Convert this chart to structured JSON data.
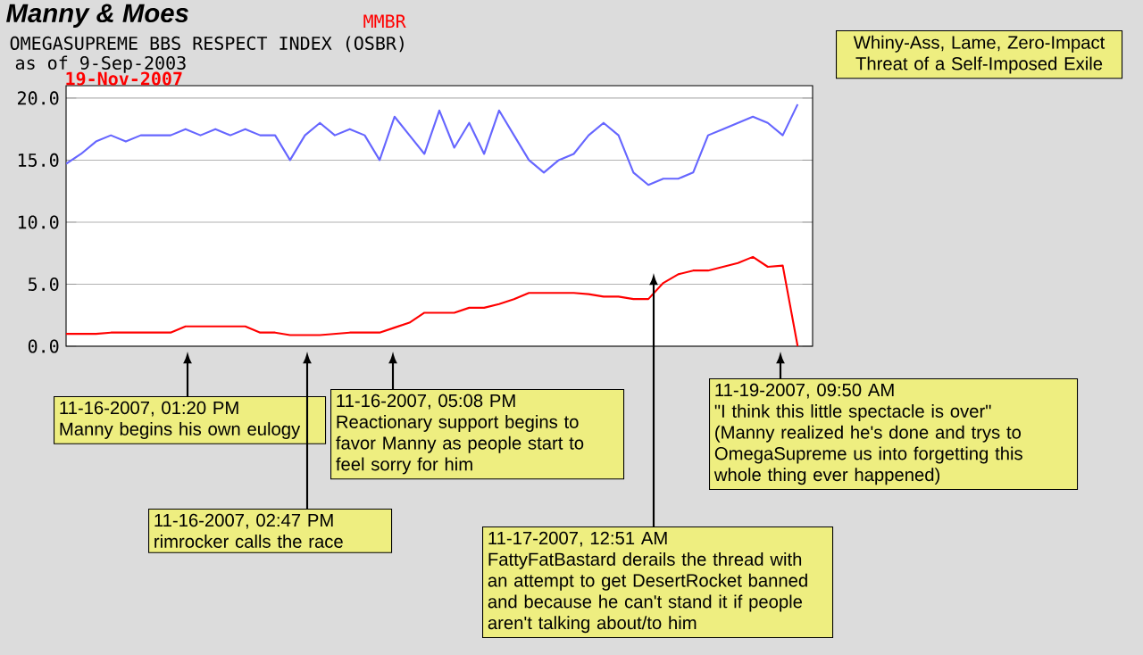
{
  "chart_data": {
    "type": "line",
    "title": "Manny & Moes",
    "subtitle": "OMEGASUPREME BBS RESPECT INDEX (OSBR)",
    "annotations": [
      "MMBR",
      "as of 9-Sep-2003",
      "19-Nov-2007",
      "Whiny-Ass, Lame, Zero-Impact Threat of a Self-Imposed Exile",
      "11-16-2007, 01:20 PM",
      "Manny begins his own eulogy",
      "11-16-2007, 02:47 PM",
      "rimrocker calls the race",
      "11-16-2007, 05:08 PM",
      "Reactionary support begins to favor Manny as people start to feel sorry for him",
      "11-17-2007, 12:51 AM",
      "FattyFatBastard derails the thread with an attempt to get DesertRocket banned and because he can't stand it if people aren't talking about/to him",
      "11-19-2007, 09:50 AM",
      "\"I think this little spectacle is over\" (Manny realized he's done and trys to OmegaSupreme us into forgetting this whole thing ever happened)"
    ],
    "categories": [
      null,
      null,
      null,
      null,
      null,
      null,
      null,
      null,
      null,
      null,
      null,
      null,
      null,
      null,
      null,
      null,
      null,
      null,
      null,
      null,
      null,
      null,
      null,
      null,
      null,
      null,
      null,
      null,
      null,
      null,
      null,
      null,
      null,
      null,
      null,
      null,
      null,
      null,
      null,
      null,
      null,
      null,
      null,
      null,
      null,
      null,
      null,
      null,
      null,
      null
    ],
    "series": [
      {
        "color": "#ff0000",
        "values": [
          1.0,
          1.0,
          1.0,
          1.1,
          1.1,
          1.1,
          1.1,
          1.1,
          1.6,
          1.6,
          1.6,
          1.6,
          1.6,
          1.1,
          1.1,
          0.9,
          0.9,
          0.9,
          1.0,
          1.1,
          1.1,
          1.1,
          1.5,
          1.9,
          2.7,
          2.7,
          2.7,
          3.1,
          3.1,
          3.4,
          3.8,
          4.3,
          4.3,
          4.3,
          4.3,
          4.2,
          4.0,
          4.0,
          3.8,
          3.8,
          5.1,
          5.8,
          6.1,
          6.1,
          6.4,
          6.7,
          7.2,
          6.4,
          6.5,
          0.0
        ]
      },
      {
        "color": "#6666ff",
        "values": [
          14.7,
          15.5,
          16.5,
          17,
          16.5,
          17,
          17,
          17,
          17.5,
          17,
          17.5,
          17,
          17.5,
          17,
          17,
          15,
          17,
          18,
          17,
          17.5,
          17,
          15,
          18.5,
          17,
          15.5,
          19,
          16,
          18,
          15.5,
          19,
          17,
          15,
          14,
          15,
          15.5,
          17,
          18,
          17,
          14,
          13,
          13.5,
          13.5,
          14,
          17,
          17.5,
          18,
          18.5,
          18,
          17,
          19.5
        ]
      }
    ],
    "ylim": [
      0,
      21
    ],
    "yticks": [
      {
        "value": 0,
        "label": "0.0"
      },
      {
        "value": 5,
        "label": "5.0"
      },
      {
        "value": 10,
        "label": "10.0"
      },
      {
        "value": 15,
        "label": "15.0"
      },
      {
        "value": 20,
        "label": "20.0"
      }
    ],
    "grid": "y",
    "tick_labels": "y",
    "marker": "none",
    "line_style": "solid"
  }
}
